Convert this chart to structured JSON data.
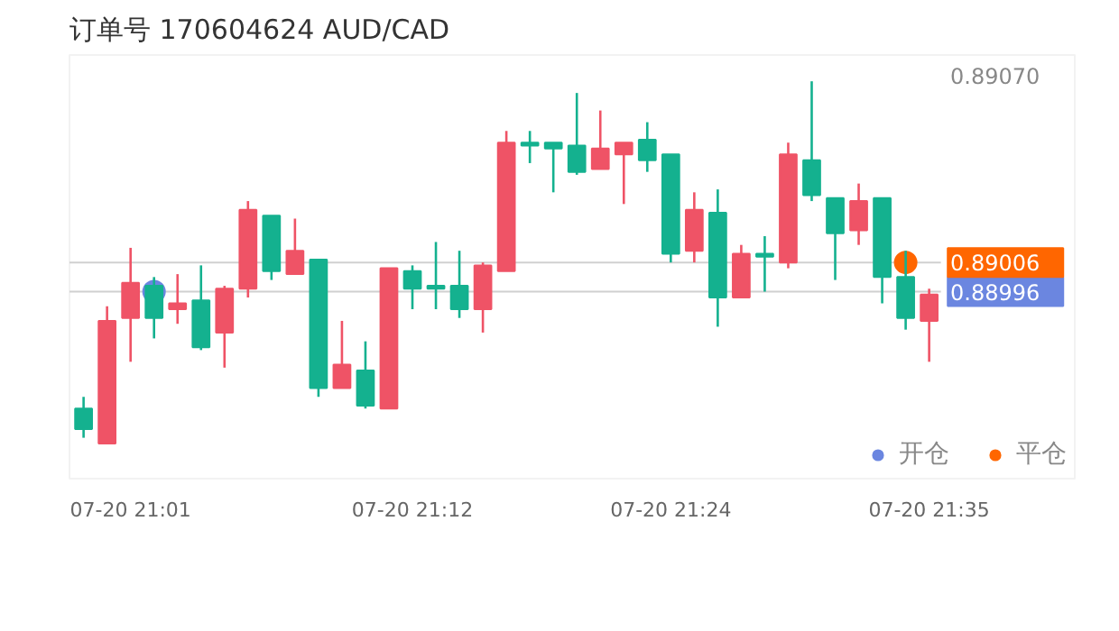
{
  "chart_data": {
    "type": "candlestick",
    "title": "订单号 170604624    AUD/CAD",
    "categories": [
      null,
      null,
      "07-20 21:01",
      null,
      null,
      null,
      null,
      null,
      null,
      null,
      null,
      null,
      null,
      null,
      "07-20 21:12",
      null,
      null,
      null,
      null,
      null,
      null,
      null,
      null,
      null,
      null,
      "07-20 21:24",
      null,
      null,
      null,
      null,
      null,
      null,
      null,
      null,
      null,
      null,
      "07-20 21:35"
    ],
    "ohlc": [
      [
        0.88956,
        0.8896,
        0.88946,
        0.88949
      ],
      [
        0.88944,
        0.88991,
        0.88944,
        0.88986
      ],
      [
        0.88987,
        0.89011,
        0.88972,
        0.88999
      ],
      [
        0.88998,
        0.89001,
        0.8898,
        0.88987
      ],
      [
        0.8899,
        0.89002,
        0.88985,
        0.88992
      ],
      [
        0.88993,
        0.89005,
        0.88976,
        0.88977
      ],
      [
        0.88982,
        0.88998,
        0.8897,
        0.88997
      ],
      [
        0.88997,
        0.89027,
        0.88994,
        0.89024
      ],
      [
        0.89022,
        0.89022,
        0.89,
        0.89003
      ],
      [
        0.89002,
        0.89021,
        0.89002,
        0.8901
      ],
      [
        0.89007,
        0.89007,
        0.8896,
        0.88963
      ],
      [
        0.88963,
        0.88986,
        0.88963,
        0.88971
      ],
      [
        0.88969,
        0.88979,
        0.88956,
        0.88957
      ],
      [
        0.88956,
        0.89004,
        0.88956,
        0.89004
      ],
      [
        0.89003,
        0.89005,
        0.8899,
        0.88997
      ],
      [
        0.88998,
        0.89013,
        0.8899,
        0.88997
      ],
      [
        0.88998,
        0.8901,
        0.88987,
        0.8899
      ],
      [
        0.8899,
        0.89006,
        0.88982,
        0.89005
      ],
      [
        0.89003,
        0.89051,
        0.89003,
        0.89047
      ],
      [
        0.89047,
        0.89051,
        0.8904,
        0.89046
      ],
      [
        0.89047,
        0.89047,
        0.8903,
        0.89045
      ],
      [
        0.89046,
        0.89064,
        0.89036,
        0.89037
      ],
      [
        0.89038,
        0.89058,
        0.89038,
        0.89045
      ],
      [
        0.89043,
        0.89047,
        0.89026,
        0.89047
      ],
      [
        0.89048,
        0.89054,
        0.89037,
        0.89041
      ],
      [
        0.89043,
        0.89043,
        0.89006,
        0.89009
      ],
      [
        0.8901,
        0.8903,
        0.89006,
        0.89024
      ],
      [
        0.89023,
        0.89031,
        0.88984,
        0.88994
      ],
      [
        0.88994,
        0.89012,
        0.88994,
        0.89009
      ],
      [
        0.89009,
        0.89015,
        0.88996,
        0.89008
      ],
      [
        0.89006,
        0.89047,
        0.89004,
        0.89043
      ],
      [
        0.89041,
        0.89068,
        0.89027,
        0.89029
      ],
      [
        0.89028,
        0.89028,
        0.89,
        0.89016
      ],
      [
        0.89017,
        0.89033,
        0.89012,
        0.89027
      ],
      [
        0.89028,
        0.89028,
        0.88992,
        0.89001
      ],
      [
        0.89001,
        0.8901,
        0.88983,
        0.88987
      ],
      [
        0.88986,
        0.88997,
        0.88972,
        0.88995
      ]
    ],
    "colors": [
      "#14b18f",
      "#ef5366",
      "#ef5366",
      "#14b18f",
      "#ef5366",
      "#14b18f",
      "#ef5366",
      "#ef5366",
      "#14b18f",
      "#ef5366",
      "#14b18f",
      "#ef5366",
      "#14b18f",
      "#ef5366",
      "#14b18f",
      "#14b18f",
      "#14b18f",
      "#ef5366",
      "#ef5366",
      "#14b18f",
      "#14b18f",
      "#14b18f",
      "#ef5366",
      "#ef5366",
      "#14b18f",
      "#14b18f",
      "#ef5366",
      "#14b18f",
      "#ef5366",
      "#14b18f",
      "#ef5366",
      "#14b18f",
      "#14b18f",
      "#ef5366",
      "#14b18f",
      "#14b18f",
      "#ef5366"
    ],
    "series": [
      {
        "name": "开仓",
        "type": "scatter",
        "color": "#6b86e0",
        "values": [
          null,
          null,
          null,
          0.88996,
          null,
          null,
          null,
          null,
          null,
          null,
          null,
          null,
          null,
          null,
          null,
          null,
          null,
          null,
          null,
          null,
          null,
          null,
          null,
          null,
          null,
          null,
          null,
          null,
          null,
          null,
          null,
          null,
          null,
          null,
          null,
          null,
          null
        ]
      },
      {
        "name": "平仓",
        "type": "scatter",
        "color": "#ff6600",
        "values": [
          null,
          null,
          null,
          null,
          null,
          null,
          null,
          null,
          null,
          null,
          null,
          null,
          null,
          null,
          null,
          null,
          null,
          null,
          null,
          null,
          null,
          null,
          null,
          null,
          null,
          null,
          null,
          null,
          null,
          null,
          null,
          null,
          null,
          null,
          null,
          0.89006,
          null
        ]
      }
    ],
    "ylim": [
      0.88932,
      0.89077
    ],
    "yticks": [
      {
        "value": 0.88996,
        "label": "0.88996"
      },
      {
        "value": 0.89006,
        "label": "0.89006"
      },
      {
        "value": 0.8907,
        "label": "0.89070"
      }
    ],
    "ref_lines": [
      {
        "axis": "y",
        "value": 0.89006
      },
      {
        "axis": "y",
        "value": 0.88996
      }
    ],
    "legend": "bottom right",
    "marker": "circle"
  }
}
